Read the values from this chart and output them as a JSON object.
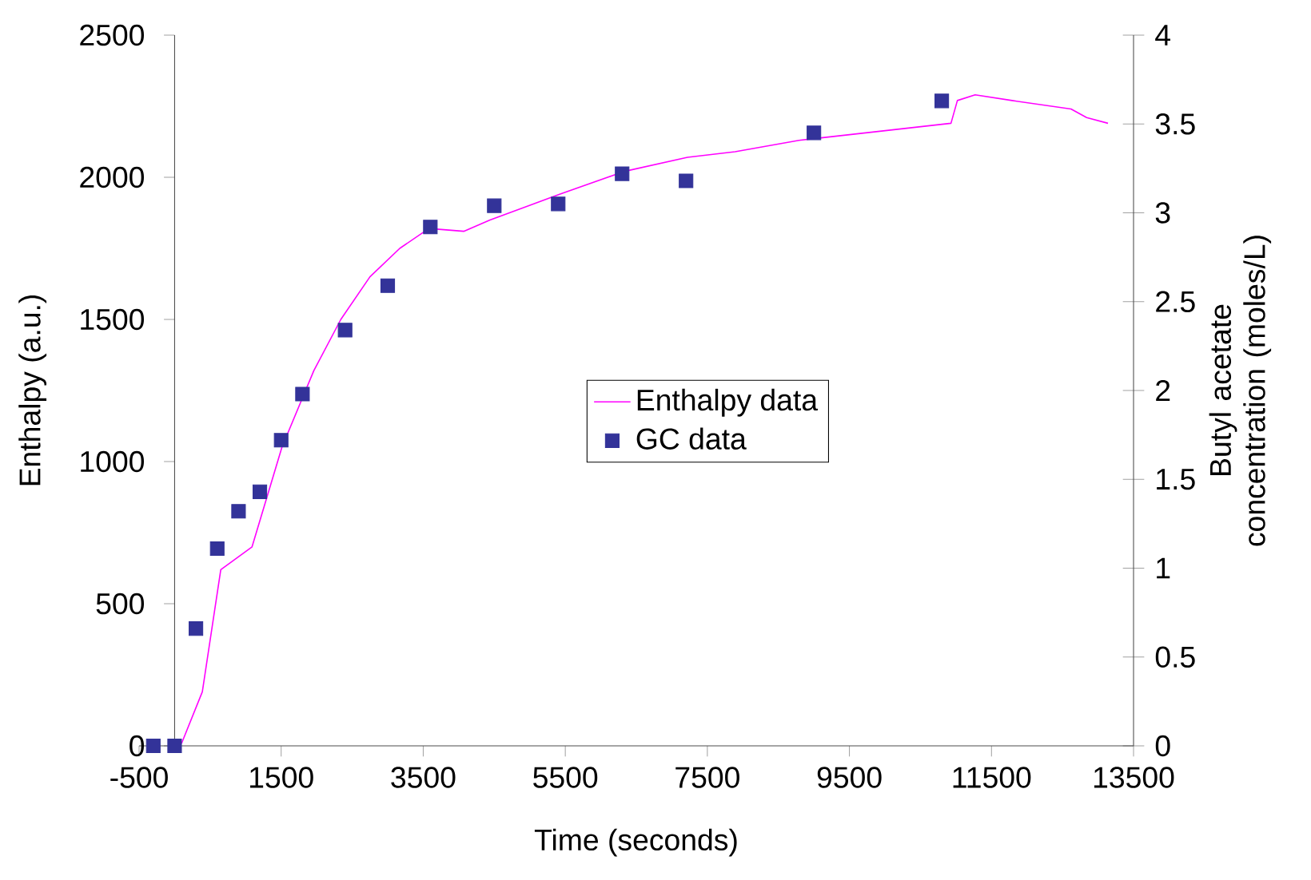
{
  "chart_data": {
    "type": "line",
    "xlabel": "Time (seconds)",
    "ylabel": "Enthalpy (a.u.)",
    "y2label": "Butyl acetate concentration (moles/L)",
    "xlim": [
      -500,
      13500
    ],
    "xticks": [
      -500,
      1500,
      3500,
      5500,
      7500,
      9500,
      11500,
      13500
    ],
    "ylim": [
      0,
      2500
    ],
    "yticks": [
      0,
      500,
      1000,
      1500,
      2000,
      2500
    ],
    "y2lim": [
      0,
      4
    ],
    "y2ticks": [
      0,
      0.5,
      1,
      1.5,
      2,
      2.5,
      3,
      3.5,
      4
    ],
    "legend": "center",
    "series": [
      {
        "name": "Enthalpy data",
        "color": "#ff00ff",
        "marker": "none",
        "x": [
          0,
          100,
          390,
          650,
          1090,
          1510,
          1960,
          2340,
          2750,
          3170,
          3580,
          4070,
          4440,
          5420,
          6320,
          7220,
          7890,
          8790,
          10930,
          11020,
          11270,
          11790,
          12620,
          12840,
          13140
        ],
        "values": [
          0,
          10,
          190,
          620,
          700,
          1050,
          1320,
          1500,
          1650,
          1750,
          1820,
          1810,
          1850,
          1940,
          2020,
          2070,
          2090,
          2130,
          2190,
          2270,
          2290,
          2270,
          2240,
          2210,
          2190
        ]
      },
      {
        "name": "GC data",
        "type": "scatter",
        "axis": "y2",
        "color": "#333399",
        "marker": "square",
        "x": [
          -300,
          0,
          300,
          600,
          900,
          1200,
          1500,
          1800,
          2400,
          3000,
          3600,
          4500,
          5400,
          6300,
          7200,
          9000,
          10800
        ],
        "values": [
          0,
          0,
          0.66,
          1.11,
          1.32,
          1.43,
          1.72,
          1.98,
          2.34,
          2.59,
          2.92,
          3.04,
          3.05,
          3.22,
          3.18,
          3.45,
          3.63
        ]
      }
    ]
  }
}
